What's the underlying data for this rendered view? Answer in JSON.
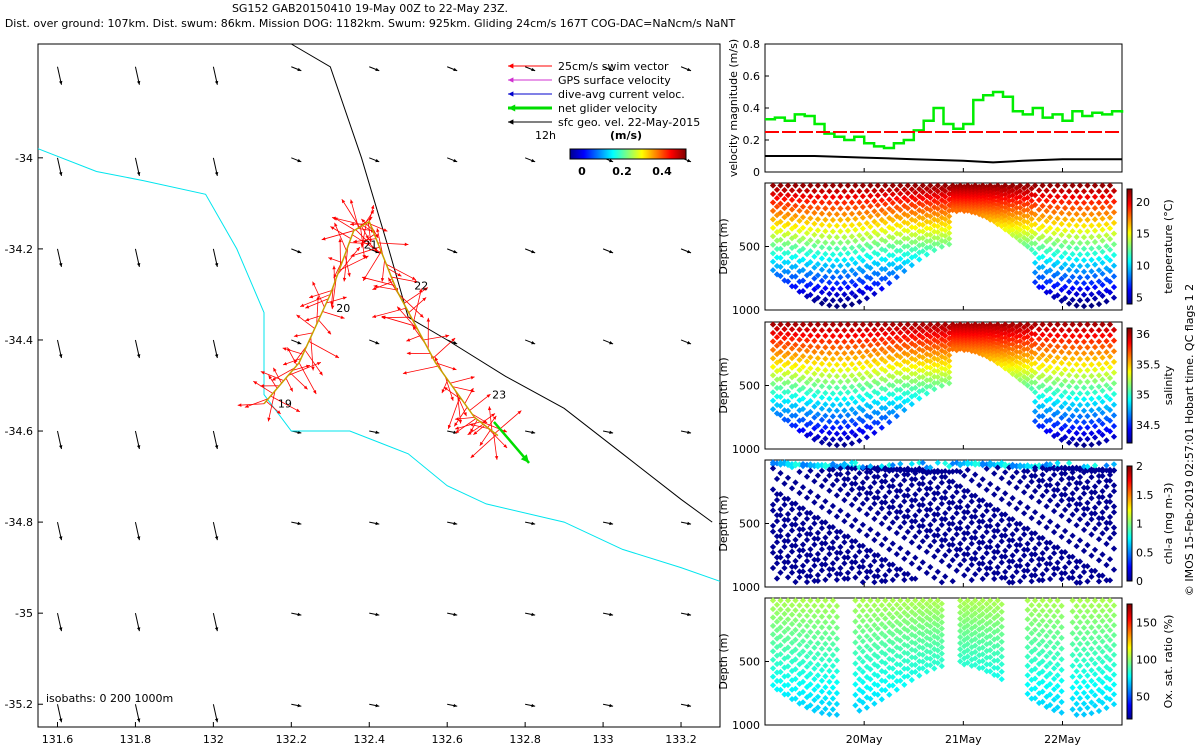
{
  "header": {
    "line1": "SG152 GAB20150410 19-May 00Z to 22-May 23Z.",
    "line2": "Dist. over ground: 107km. Dist. swum: 86km. Mission DOG: 1182km. Swum: 925km. Gliding 24cm/s 167T COG-DAC=NaNcm/s NaNT"
  },
  "chart_data": [
    {
      "type": "scatter",
      "name": "glider-track-map",
      "xlim": [
        131.55,
        133.3
      ],
      "ylim": [
        -35.25,
        -33.75
      ],
      "xticks": [
        "131.6",
        "131.8",
        "132",
        "132.2",
        "132.4",
        "132.6",
        "132.8",
        "133",
        "133.2"
      ],
      "yticks": [
        "-34",
        "-34.2",
        "-34.4",
        "-34.6",
        "-34.8",
        "-35",
        "-35.2"
      ],
      "track": [
        [
          132.13,
          -34.54
        ],
        [
          132.22,
          -34.45
        ],
        [
          132.3,
          -34.3
        ],
        [
          132.36,
          -34.16
        ],
        [
          132.4,
          -34.14
        ],
        [
          132.47,
          -34.29
        ],
        [
          132.57,
          -34.45
        ],
        [
          132.67,
          -34.57
        ],
        [
          132.73,
          -34.61
        ]
      ],
      "day_labels": [
        {
          "text": "19",
          "lon": 132.15,
          "lat": -34.54
        },
        {
          "text": "20",
          "lon": 132.3,
          "lat": -34.33
        },
        {
          "text": "21",
          "lon": 132.37,
          "lat": -34.19
        },
        {
          "text": "22",
          "lon": 132.5,
          "lat": -34.28
        },
        {
          "text": "23",
          "lon": 132.7,
          "lat": -34.52
        }
      ],
      "net_velocity": {
        "lon": 132.72,
        "lat": -34.58,
        "dlon": 0.09,
        "dlat": -0.09
      },
      "coast_0m": [
        [
          131.55,
          -33.98
        ],
        [
          131.7,
          -34.03
        ],
        [
          131.82,
          -34.05
        ],
        [
          131.98,
          -34.08
        ],
        [
          132.06,
          -34.2
        ],
        [
          132.13,
          -34.34
        ],
        [
          132.13,
          -34.52
        ],
        [
          132.2,
          -34.6
        ],
        [
          132.35,
          -34.6
        ],
        [
          132.5,
          -34.65
        ],
        [
          132.6,
          -34.72
        ],
        [
          132.7,
          -34.76
        ],
        [
          132.9,
          -34.8
        ],
        [
          133.05,
          -34.86
        ],
        [
          133.2,
          -34.9
        ],
        [
          133.3,
          -34.93
        ]
      ],
      "coast_1000m": [
        [
          132.2,
          -33.75
        ],
        [
          132.3,
          -33.8
        ],
        [
          132.38,
          -34.0
        ],
        [
          132.45,
          -34.2
        ],
        [
          132.5,
          -34.35
        ],
        [
          132.6,
          -34.4
        ],
        [
          132.75,
          -34.48
        ],
        [
          132.9,
          -34.55
        ],
        [
          133.05,
          -34.65
        ],
        [
          133.2,
          -34.75
        ],
        [
          133.28,
          -34.8
        ]
      ],
      "legend": [
        {
          "label": "25cm/s swim vector",
          "color": "#ff0000"
        },
        {
          "label": "GPS surface velocity",
          "color": "#d030d0"
        },
        {
          "label": "dive-avg current veloc.",
          "color": "#0000cc"
        },
        {
          "label": "net glider velocity",
          "color": "#00dd00"
        },
        {
          "label": "sfc geo. vel. 22-May-2015",
          "color": "#000000"
        }
      ],
      "legend_extra": "12h",
      "colorbar": {
        "title": "(m/s)",
        "ticks": [
          "0",
          "0.2",
          "0.4"
        ]
      },
      "isobaths_label": "isobaths: 0   200  1000m"
    },
    {
      "type": "line",
      "name": "velocity-magnitude",
      "ylabel": "velocity magnitude (m/s)",
      "ylim": [
        0,
        0.8
      ],
      "yticks": [
        "0",
        "0.2",
        "0.4",
        "0.6",
        "0.8"
      ],
      "series": [
        {
          "name": "net glider velocity",
          "color": "#00ee00",
          "x": [
            0,
            0.1,
            0.2,
            0.3,
            0.4,
            0.5,
            0.6,
            0.7,
            0.8,
            0.9,
            1.0,
            1.1,
            1.2,
            1.3,
            1.4,
            1.5,
            1.6,
            1.7,
            1.8,
            1.9,
            2.0,
            2.1,
            2.2,
            2.3,
            2.4,
            2.5,
            2.6,
            2.7,
            2.8,
            2.9,
            3.0,
            3.1,
            3.2,
            3.3,
            3.4,
            3.5,
            3.6
          ],
          "values": [
            0.33,
            0.34,
            0.32,
            0.36,
            0.35,
            0.3,
            0.24,
            0.22,
            0.2,
            0.22,
            0.18,
            0.16,
            0.15,
            0.18,
            0.2,
            0.26,
            0.32,
            0.4,
            0.3,
            0.27,
            0.3,
            0.45,
            0.48,
            0.5,
            0.47,
            0.38,
            0.36,
            0.4,
            0.34,
            0.36,
            0.32,
            0.38,
            0.35,
            0.37,
            0.36,
            0.38,
            0.37
          ]
        },
        {
          "name": "swim speed",
          "color": "#ff0000",
          "x": [
            0,
            3.6
          ],
          "values": [
            0.25,
            0.25
          ]
        },
        {
          "name": "surface current",
          "color": "#000000",
          "x": [
            0,
            0.5,
            1.0,
            1.5,
            2.0,
            2.3,
            2.6,
            3.0,
            3.6
          ],
          "values": [
            0.1,
            0.1,
            0.09,
            0.08,
            0.07,
            0.06,
            0.07,
            0.08,
            0.08
          ]
        }
      ]
    },
    {
      "type": "scatter",
      "name": "temperature-section",
      "ylabel": "Depth (m)",
      "clabel": "temperature (°C)",
      "yticks": [
        "500",
        "1000"
      ],
      "cticks": [
        "5",
        "10",
        "15",
        "20"
      ],
      "crange": [
        4,
        22
      ]
    },
    {
      "type": "scatter",
      "name": "salinity-section",
      "ylabel": "Depth (m)",
      "clabel": "salinity",
      "yticks": [
        "500",
        "1000"
      ],
      "cticks": [
        "34.5",
        "35",
        "35.5",
        "36"
      ],
      "crange": [
        34.2,
        36.1
      ]
    },
    {
      "type": "scatter",
      "name": "chla-section",
      "ylabel": "Depth (m)",
      "clabel": "chl-a (mg m-3)",
      "yticks": [
        "500",
        "1000"
      ],
      "cticks": [
        "0",
        "0.5",
        "1",
        "1.5",
        "2"
      ],
      "crange": [
        0,
        2
      ]
    },
    {
      "type": "scatter",
      "name": "oxygen-section",
      "ylabel": "Depth (m)",
      "clabel": "Ox. sat. ratio (%)",
      "yticks": [
        "500",
        "1000"
      ],
      "cticks": [
        "50",
        "100",
        "150"
      ],
      "crange": [
        20,
        175
      ]
    }
  ],
  "time_axis": {
    "ticks": [
      "20May",
      "21May",
      "22May"
    ]
  },
  "side_note": "© IMOS 15-Feb-2019 02:57:01 Hobart time. QC flags 1  2"
}
